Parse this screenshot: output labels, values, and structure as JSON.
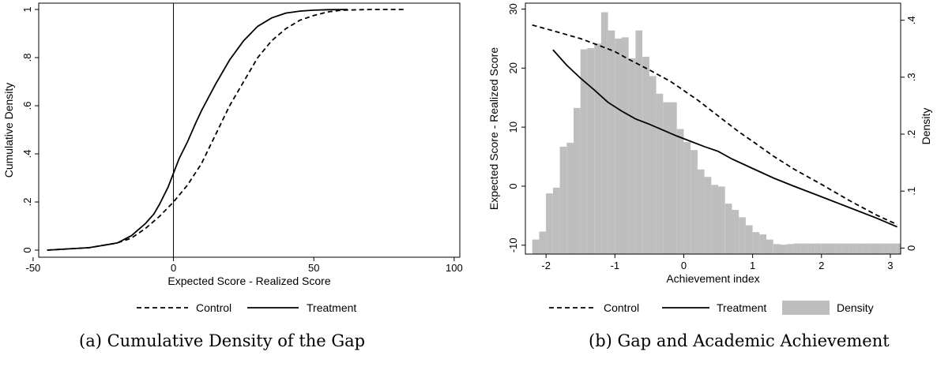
{
  "chart_data": [
    {
      "type": "line",
      "caption": "(a) Cumulative Density of the Gap",
      "xlabel": "Expected Score - Realized Score",
      "ylabel": "Cumulative Density",
      "xlim": [
        -48,
        102
      ],
      "ylim": [
        0,
        1
      ],
      "xticks": [
        -50,
        0,
        50,
        100
      ],
      "xtick_labels": [
        "-50",
        "0",
        "50",
        "100"
      ],
      "yticks": [
        0,
        0.2,
        0.4,
        0.6,
        0.8,
        1
      ],
      "ytick_labels": [
        "0",
        ".2",
        ".4",
        ".6",
        ".8",
        "1"
      ],
      "vline_x": 0,
      "legend": [
        "Control",
        "Treatment"
      ],
      "series": [
        {
          "name": "Control",
          "style": "dashed",
          "x": [
            -45,
            -30,
            -20,
            -15,
            -10,
            -5,
            0,
            5,
            10,
            15,
            20,
            25,
            30,
            35,
            40,
            45,
            50,
            55,
            60,
            70,
            83
          ],
          "y": [
            0,
            0.01,
            0.03,
            0.05,
            0.09,
            0.14,
            0.2,
            0.27,
            0.36,
            0.48,
            0.6,
            0.7,
            0.8,
            0.87,
            0.92,
            0.955,
            0.975,
            0.99,
            0.997,
            1,
            1
          ]
        },
        {
          "name": "Treatment",
          "style": "solid",
          "x": [
            -45,
            -30,
            -20,
            -15,
            -10,
            -7,
            -5,
            -2,
            0,
            2,
            5,
            8,
            10,
            15,
            20,
            25,
            30,
            35,
            40,
            45,
            50,
            55,
            62
          ],
          "y": [
            0,
            0.01,
            0.03,
            0.06,
            0.11,
            0.15,
            0.19,
            0.26,
            0.32,
            0.38,
            0.45,
            0.53,
            0.58,
            0.69,
            0.79,
            0.87,
            0.93,
            0.965,
            0.985,
            0.993,
            0.997,
            0.999,
            1
          ]
        }
      ]
    },
    {
      "type": "line",
      "caption": "(b) Gap and Academic Achievement",
      "xlabel": "Achievement index",
      "ylabel": "Expected Score - Realized Score",
      "ylabel_right": "Density",
      "xlim": [
        -2.3,
        3.15
      ],
      "ylim": [
        -11.5,
        31
      ],
      "ylim_right": [
        -0.005,
        0.43
      ],
      "xticks": [
        -2,
        -1,
        0,
        1,
        2,
        3
      ],
      "xtick_labels": [
        "-2",
        "-1",
        "0",
        "1",
        "2",
        "3"
      ],
      "yticks": [
        -10,
        0,
        10,
        20,
        30
      ],
      "ytick_labels": [
        "-10",
        "0",
        "10",
        "20",
        "30"
      ],
      "yticks_right": [
        0,
        0.1,
        0.2,
        0.3,
        0.4
      ],
      "ytick_labels_right": [
        "0",
        ".1",
        ".2",
        ".3",
        ".4"
      ],
      "legend": [
        "Control",
        "Treatment",
        "Density"
      ],
      "density_bins": {
        "start": -2.2,
        "width": 0.1,
        "values": [
          0.015,
          0.029,
          0.096,
          0.106,
          0.178,
          0.185,
          0.246,
          0.349,
          0.351,
          0.359,
          0.414,
          0.382,
          0.368,
          0.37,
          0.333,
          0.382,
          0.336,
          0.302,
          0.271,
          0.256,
          0.256,
          0.209,
          0.186,
          0.172,
          0.138,
          0.125,
          0.111,
          0.108,
          0.078,
          0.067,
          0.054,
          0.04,
          0.028,
          0.024,
          0.015,
          0.007,
          0.006,
          0.007,
          0.008,
          0.008,
          0.008,
          0.008,
          0.008,
          0.008,
          0.008,
          0.008,
          0.008,
          0.008,
          0.008,
          0.008,
          0.008,
          0.008,
          0.008,
          0.008
        ]
      },
      "series": [
        {
          "name": "Control",
          "style": "dashed",
          "x": [
            -2.2,
            -1.8,
            -1.5,
            -1.2,
            -1.0,
            -0.8,
            -0.5,
            -0.2,
            0,
            0.2,
            0.5,
            0.8,
            1.0,
            1.3,
            1.6,
            2.0,
            2.4,
            2.8,
            3.1
          ],
          "y": [
            27.3,
            26.0,
            25.0,
            23.7,
            22.8,
            21.5,
            19.7,
            17.8,
            16.2,
            14.6,
            11.9,
            9.2,
            7.6,
            5.1,
            2.9,
            0.3,
            -2.4,
            -4.9,
            -6.5
          ]
        },
        {
          "name": "Treatment",
          "style": "solid",
          "x": [
            -1.9,
            -1.7,
            -1.5,
            -1.3,
            -1.1,
            -0.9,
            -0.7,
            -0.5,
            -0.3,
            -0.1,
            0.1,
            0.3,
            0.5,
            0.7,
            1.0,
            1.3,
            1.6,
            2.0,
            2.4,
            2.8,
            3.1
          ],
          "y": [
            23.1,
            20.5,
            18.3,
            16.3,
            14.2,
            12.7,
            11.4,
            10.5,
            9.5,
            8.5,
            7.6,
            6.7,
            5.9,
            4.6,
            3.0,
            1.4,
            0,
            -1.8,
            -3.6,
            -5.4,
            -6.9
          ]
        }
      ]
    }
  ]
}
